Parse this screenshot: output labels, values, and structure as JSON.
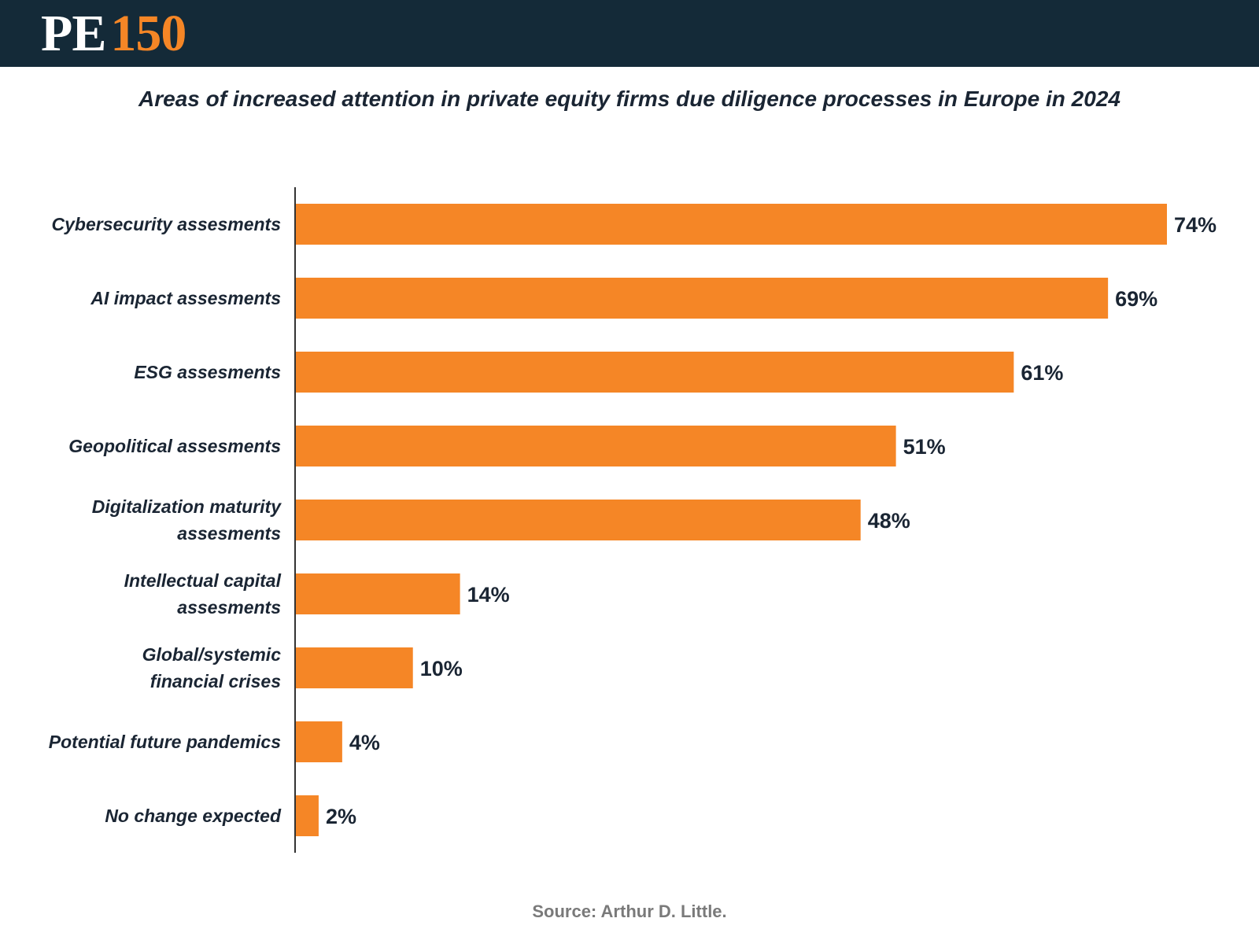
{
  "header": {
    "logo_pe": "PE",
    "logo_num": "150",
    "bg_color": "#142a38",
    "accent_color": "#f58626"
  },
  "title": "Areas of increased attention in private equity  firms due diligence processes in Europe in 2024",
  "source": "Source: Arthur D. Little.",
  "chart_data": {
    "type": "bar",
    "orientation": "horizontal",
    "title": "Areas of increased attention in private equity  firms due diligence processes in Europe in 2024",
    "xlabel": "",
    "ylabel": "",
    "categories": [
      [
        "Cybersecurity assesments"
      ],
      [
        "AI impact assesments"
      ],
      [
        "ESG assesments"
      ],
      [
        "Geopolitical assesments"
      ],
      [
        "Digitalization maturity",
        "assesments"
      ],
      [
        "Intellectual capital",
        "assesments"
      ],
      [
        "Global/systemic",
        "financial crises"
      ],
      [
        "Potential future pandemics"
      ],
      [
        "No change expected"
      ]
    ],
    "values": [
      74,
      69,
      61,
      51,
      48,
      14,
      10,
      4,
      2
    ],
    "value_labels": [
      "74%",
      "69%",
      "61%",
      "51%",
      "48%",
      "14%",
      "10%",
      "4%",
      "2%"
    ],
    "xlim": [
      0,
      74
    ],
    "bar_color": "#f58626",
    "grid": false,
    "legend": "none"
  }
}
